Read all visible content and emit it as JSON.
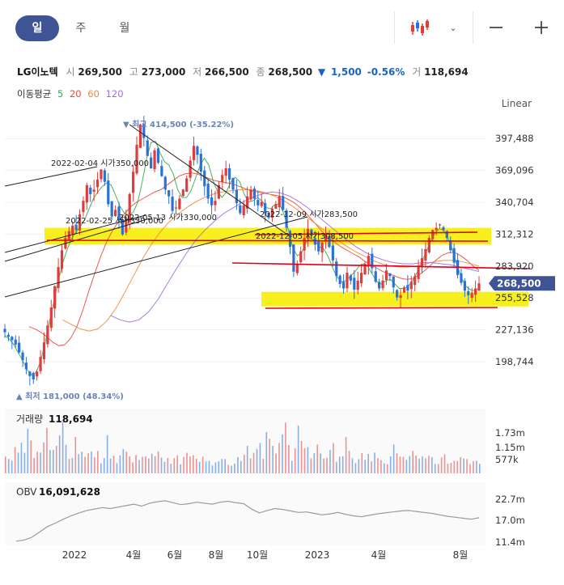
{
  "toolbar": {
    "period_tabs": [
      "일",
      "주",
      "월"
    ],
    "active_period": "일",
    "chart_type_icon": "candlestick-icon",
    "chevron_icon": "chevron-down-icon",
    "zoom_out_icon": "minus-icon",
    "zoom_in_icon": "plus-icon"
  },
  "quote": {
    "name": "LG이노텍",
    "open_label": "시",
    "open": "269,500",
    "high_label": "고",
    "high": "273,000",
    "low_label": "저",
    "low": "266,500",
    "close_label": "종",
    "close": "268,500",
    "change_arrow": "▼",
    "change": "1,500",
    "change_pct": "-0.56%",
    "volume_label": "거",
    "volume": "118,694"
  },
  "moving_average": {
    "label": "이동평균",
    "periods": [
      {
        "period": "5",
        "color": "#3aa84a"
      },
      {
        "period": "20",
        "color": "#e64a3b"
      },
      {
        "period": "60",
        "color": "#ee8a3c"
      },
      {
        "period": "120",
        "color": "#a06be0"
      }
    ]
  },
  "scale_mode": "Linear",
  "colors": {
    "up": "#e03c3c",
    "down": "#2a73d6",
    "highlight": "#f7f01e",
    "trendline": "#222222",
    "support": "#e0001a",
    "accent": "#3e5494",
    "price_tag_bg": "#3e5494",
    "obv": "#9a9a9a"
  },
  "chart_data": {
    "type": "candlestick",
    "price_axis_ticks": [
      397488,
      369096,
      340704,
      312312,
      283920,
      255528,
      227136,
      198744
    ],
    "price_axis_tick_labels": [
      "397,488",
      "369,096",
      "340,704",
      "312,312",
      "283,920",
      "255,528",
      "227,136",
      "198,744"
    ],
    "x_axis_labels": [
      "2022",
      "4월",
      "6월",
      "8월",
      "10월",
      "2023",
      "4월",
      "8월"
    ],
    "current_price": 268500,
    "current_price_label": "268,500",
    "high_marker": {
      "prefix": "▼ 최고",
      "value": "414,500",
      "pct": "(-35.22%)"
    },
    "low_marker": {
      "prefix": "▲ 최저",
      "value": "181,000",
      "pct": "(48.34%)"
    },
    "price_series": [
      225000,
      221000,
      218000,
      214000,
      207000,
      200000,
      192000,
      186000,
      183000,
      190000,
      203000,
      216000,
      231000,
      247000,
      266000,
      283000,
      298000,
      309000,
      315000,
      320000,
      316000,
      330000,
      342000,
      356000,
      348000,
      352000,
      361000,
      370000,
      359000,
      339000,
      328000,
      334000,
      325000,
      312000,
      326000,
      348000,
      368000,
      392000,
      410000,
      398000,
      382000,
      371000,
      387000,
      376000,
      364000,
      352000,
      346000,
      333000,
      336000,
      344000,
      352000,
      362000,
      378000,
      391000,
      383000,
      368000,
      355000,
      344000,
      338000,
      342000,
      356000,
      365000,
      371000,
      361000,
      352000,
      340000,
      331000,
      338000,
      346000,
      352000,
      344000,
      338000,
      341000,
      331000,
      327000,
      335000,
      339000,
      346000,
      334000,
      318000,
      301000,
      279000,
      286000,
      297000,
      309000,
      317000,
      311000,
      303000,
      297000,
      305000,
      312000,
      301000,
      289000,
      275000,
      268000,
      264000,
      278000,
      271000,
      263000,
      271000,
      278000,
      286000,
      293000,
      282000,
      270000,
      264000,
      271000,
      280000,
      275000,
      265000,
      256000,
      258000,
      265000,
      262000,
      270000,
      275000,
      284000,
      291000,
      299000,
      309000,
      316000,
      318000,
      321000,
      316000,
      309000,
      298000,
      287000,
      276000,
      269000,
      262000,
      258000,
      260000,
      264000,
      268500
    ],
    "ma_series": [
      {
        "name": "5",
        "values": [
          222000,
          219000,
          214000,
          207000,
          200000,
          192000,
          187000,
          189000,
          198000,
          214000,
          233000,
          251000,
          270000,
          286000,
          298000,
          308000,
          314000,
          319000,
          325000,
          335000,
          344000,
          350000,
          355000,
          358000,
          356000,
          347000,
          337000,
          331000,
          329000,
          332000,
          341000,
          359000,
          380000,
          394000,
          395000,
          385000,
          377000,
          374000,
          366000,
          352000,
          345000,
          345000,
          351000,
          362000,
          373000,
          380000,
          374000,
          360000,
          350000,
          345000,
          350000,
          359000,
          363000,
          359000,
          348000,
          341000,
          342000,
          345000,
          342000,
          336000,
          335000,
          339000,
          339000,
          330000,
          316000,
          300000,
          293000,
          296000,
          305000,
          309000,
          306000,
          301000,
          299000,
          292000,
          282000,
          274000,
          270000,
          271000,
          275000,
          279000,
          284000,
          286000,
          283000,
          276000,
          270000,
          268000,
          271000,
          272000,
          268000,
          264000,
          264000,
          266000,
          271000,
          278000,
          287000,
          296000,
          305000,
          313000,
          317000,
          316000,
          309000,
          298000,
          285000,
          274000,
          266000,
          263000,
          262000,
          264000
        ]
      },
      {
        "name": "20",
        "values": [
          230000,
          228000,
          225000,
          221000,
          216000,
          213000,
          214000,
          220000,
          230000,
          245000,
          262000,
          278000,
          293000,
          306000,
          316000,
          324000,
          331000,
          337000,
          341000,
          344000,
          347000,
          350000,
          352000,
          356000,
          360000,
          364000,
          366000,
          367000,
          366000,
          364000,
          362000,
          360000,
          359000,
          358000,
          357000,
          355000,
          353000,
          351000,
          350000,
          349000,
          348000,
          347000,
          346000,
          344000,
          341000,
          337000,
          332000,
          326000,
          320000,
          314000,
          309000,
          305000,
          301000,
          298000,
          295000,
          292000,
          288000,
          285000,
          282000,
          279000,
          277000,
          275000,
          273000,
          272000,
          273000,
          276000,
          280000,
          285000,
          290000,
          294000,
          296000,
          296000,
          293000,
          289000,
          284000,
          280000
        ]
      },
      {
        "name": "60",
        "values": [
          236000,
          232000,
          228000,
          226000,
          228000,
          235000,
          246000,
          260000,
          275000,
          290000,
          303000,
          314000,
          323000,
          330000,
          336000,
          341000,
          345000,
          348000,
          350000,
          351000,
          352000,
          352000,
          351000,
          349000,
          346000,
          342000,
          337000,
          331000,
          325000,
          319000,
          313000,
          307000,
          302000,
          297000,
          293000,
          289000,
          286000,
          284000,
          283000,
          283000,
          284000,
          286000,
          288000,
          289000,
          289000,
          288000,
          286000,
          284000
        ]
      },
      {
        "name": "120",
        "values": [
          240000,
          236000,
          234000,
          236000,
          243000,
          254000,
          268000,
          282000,
          295000,
          307000,
          316000,
          324000,
          331000,
          336000,
          341000,
          345000,
          348000,
          350000,
          349000,
          346000,
          341000,
          335000,
          328000,
          321000,
          314000,
          307000,
          301000,
          296000,
          292000,
          289000,
          287000,
          286000,
          286000,
          287000,
          287000,
          286000,
          285000,
          283000,
          281000,
          279000
        ]
      }
    ],
    "annotations": [
      {
        "text": "2022-02-04 시가350,000",
        "price": 350000
      },
      {
        "text": "2022-02-25 시가330,000",
        "price": 330000
      },
      {
        "text": "2022-05-13 시가330,000",
        "price": 330000
      },
      {
        "text": "2022-12-09 시가283,500",
        "price": 283500
      },
      {
        "text": "2022-12-05 시가308,500",
        "price": 308500
      }
    ],
    "volume": {
      "title": "거래량",
      "value": "118,694",
      "ticks": [
        "1.73m",
        "1.15m",
        "577k"
      ],
      "series": [
        0.35,
        0.42,
        0.3,
        0.55,
        0.48,
        0.62,
        0.4,
        0.75,
        0.58,
        0.44,
        0.36,
        0.52,
        0.68,
        0.81,
        0.5,
        0.39,
        0.46,
        0.72,
        0.95,
        0.6,
        0.41,
        0.38,
        0.55,
        0.47,
        0.33,
        0.29,
        0.44,
        0.62,
        0.5,
        0.36,
        0.31,
        0.4,
        0.57,
        0.45,
        0.34,
        0.28,
        0.37,
        0.49,
        0.42,
        0.3,
        0.26,
        0.33,
        0.41,
        0.38,
        0.29,
        0.25,
        0.31,
        0.45,
        0.52,
        0.36,
        0.28,
        0.24,
        0.3,
        0.35,
        0.27,
        0.23,
        0.29,
        0.34,
        0.4,
        0.31,
        0.25,
        0.22,
        0.28,
        0.33,
        0.26,
        0.21,
        0.27,
        0.32,
        0.38,
        0.29,
        0.24,
        0.2,
        0.26,
        0.31,
        0.25
      ]
    },
    "obv": {
      "title": "OBV",
      "value": "16,091,628",
      "ticks": [
        "22.7m",
        "17.0m",
        "11.4m"
      ],
      "series": [
        11.6,
        11.8,
        12.4,
        13.5,
        14.6,
        15.3,
        16.1,
        16.8,
        17.4,
        17.9,
        18.2,
        18.5,
        18.3,
        18.6,
        18.9,
        19.2,
        18.8,
        19.4,
        19.7,
        19.9,
        19.5,
        19.1,
        19.3,
        19.6,
        19.4,
        19.2,
        19.6,
        19.8,
        19.5,
        19.3,
        18.2,
        17.4,
        17.9,
        18.3,
        18.1,
        17.8,
        17.5,
        17.6,
        17.3,
        17.0,
        17.2,
        17.5,
        17.1,
        16.8,
        16.6,
        16.9,
        17.2,
        17.4,
        17.6,
        17.8,
        17.9,
        17.7,
        17.5,
        17.3,
        17.0,
        16.7,
        16.5,
        16.3,
        16.1,
        16.4
      ]
    }
  }
}
